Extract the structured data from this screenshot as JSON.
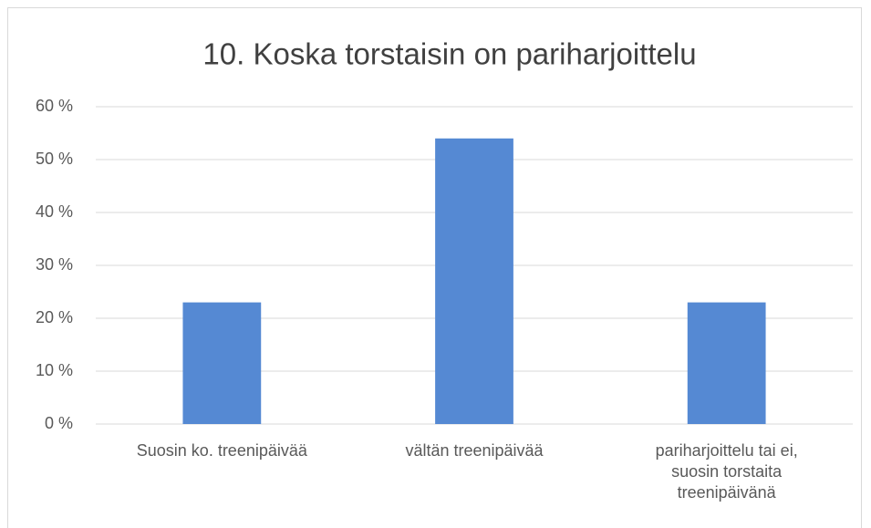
{
  "chart_data": {
    "type": "bar",
    "title": "10. Koska torstaisin on pariharjoittelu",
    "categories": [
      "Suosin ko. treenipäivää",
      "vältän treenipäivää",
      "pariharjoittelu tai ei, suosin torstaita treenipäivänä"
    ],
    "values": [
      23,
      54,
      23
    ],
    "color": "#5589d3",
    "ylim": [
      0,
      60
    ],
    "yticks": [
      {
        "value": 0,
        "label": "0 %"
      },
      {
        "value": 10,
        "label": "10 %"
      },
      {
        "value": 20,
        "label": "20 %"
      },
      {
        "value": 30,
        "label": "30 %"
      },
      {
        "value": 40,
        "label": "40 %"
      },
      {
        "value": 50,
        "label": "50 %"
      },
      {
        "value": 60,
        "label": "60 %"
      }
    ],
    "grid": true
  }
}
